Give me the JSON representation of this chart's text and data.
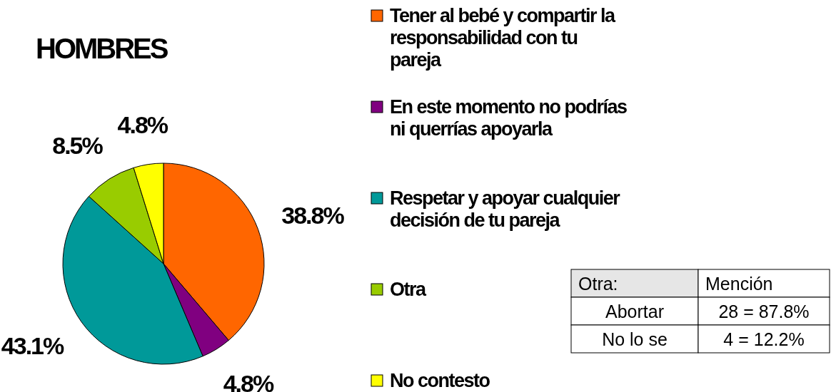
{
  "chart_data": {
    "type": "pie",
    "title": "HOMBRES",
    "categories": [
      "Tener al bebé y compartir la responsabilidad con tu pareja",
      "En este momento no podrías ni querrías apoyarla",
      "Respetar y apoyar cualquier decisión de tu pareja",
      "Otra",
      "No contesto"
    ],
    "values": [
      38.8,
      4.8,
      43.1,
      8.5,
      4.8
    ],
    "colors": [
      "#ff6600",
      "#800080",
      "#009999",
      "#99cc00",
      "#ffff00"
    ],
    "value_labels": [
      "38.8%",
      "4.8%",
      "43.1%",
      "8.5%",
      "4.8%"
    ],
    "legend": "right",
    "annotations": [
      "Otra:",
      "Mención",
      "Abortar",
      "28 = 87.8%",
      "No lo se",
      "4 = 12.2%"
    ]
  }
}
